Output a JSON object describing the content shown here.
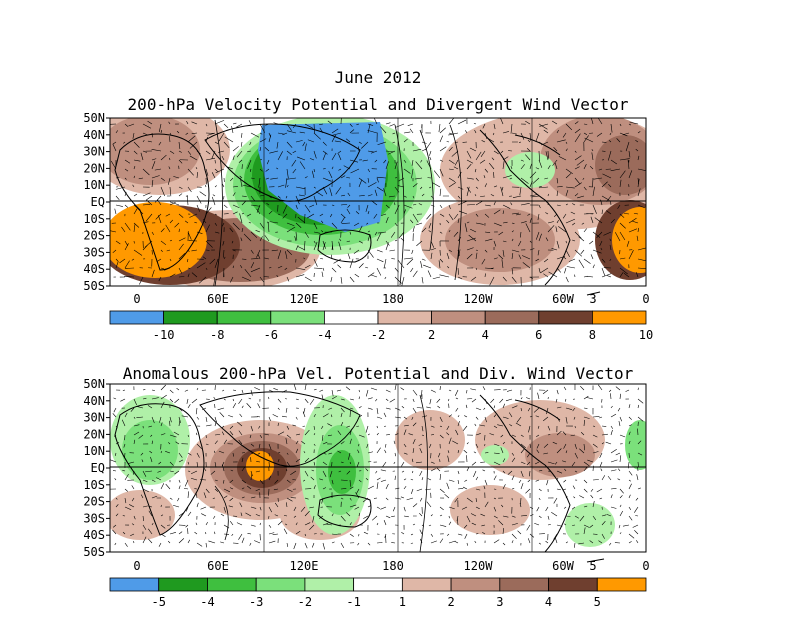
{
  "main_title": "June 2012",
  "panels": [
    {
      "title": "200-hPa Velocity Potential and Divergent Wind Vector",
      "lat_labels": [
        "50N",
        "40N",
        "30N",
        "20N",
        "10N",
        "EQ",
        "10S",
        "20S",
        "30S",
        "40S",
        "50S"
      ],
      "lon_labels": [
        "0",
        "60E",
        "120E",
        "180",
        "120W",
        "60W",
        "0"
      ],
      "ref_vector": "3",
      "colorbar": {
        "colors": [
          "#4f9be8",
          "#1f9a1f",
          "#3fbf3f",
          "#7be07b",
          "#ffffff",
          "#dfb7a7",
          "#bf8f7f",
          "#9b6b5b",
          "#6f3f2f",
          "#ff9900"
        ],
        "labels": [
          "-10",
          "-8",
          "-6",
          "-4",
          "-2",
          "2",
          "4",
          "6",
          "8",
          "10"
        ]
      }
    },
    {
      "title": "Anomalous 200-hPa Vel. Potential and Div. Wind Vector",
      "lat_labels": [
        "50N",
        "40N",
        "30N",
        "20N",
        "10N",
        "EQ",
        "10S",
        "20S",
        "30S",
        "40S",
        "50S"
      ],
      "lon_labels": [
        "0",
        "60E",
        "120E",
        "180",
        "120W",
        "60W",
        "0"
      ],
      "ref_vector": "5",
      "colorbar": {
        "colors": [
          "#4f9be8",
          "#1f9a1f",
          "#3fbf3f",
          "#7be07b",
          "#b0f0a8",
          "#ffffff",
          "#dfb7a7",
          "#bf8f7f",
          "#9b6b5b",
          "#6f3f2f",
          "#ff9900"
        ],
        "labels": [
          "-5",
          "-4",
          "-3",
          "-2",
          "-1",
          "1",
          "2",
          "3",
          "4",
          "5"
        ]
      }
    }
  ]
}
